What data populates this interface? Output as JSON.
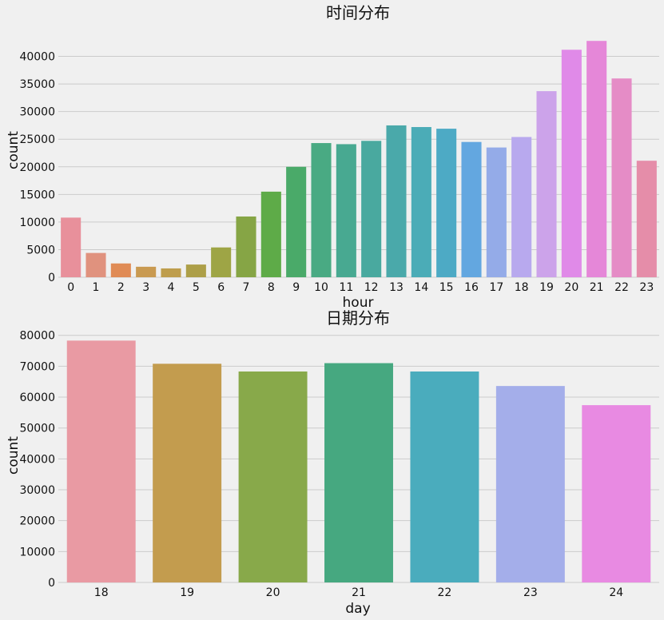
{
  "chart_data": [
    {
      "type": "bar",
      "title": "时间分布",
      "xlabel": "hour",
      "ylabel": "count",
      "categories": [
        "0",
        "1",
        "2",
        "3",
        "4",
        "5",
        "6",
        "7",
        "8",
        "9",
        "10",
        "11",
        "12",
        "13",
        "14",
        "15",
        "16",
        "17",
        "18",
        "19",
        "20",
        "21",
        "22",
        "23"
      ],
      "values": [
        10800,
        4400,
        2500,
        1900,
        1600,
        2300,
        5400,
        11000,
        15500,
        20000,
        24300,
        24100,
        24700,
        27500,
        27200,
        26900,
        24500,
        23500,
        25400,
        33700,
        41200,
        42800,
        36000,
        21100
      ],
      "colors": [
        "#e8909b",
        "#e0927e",
        "#e08b55",
        "#c99a51",
        "#be9d4c",
        "#ad9f48",
        "#9ea545",
        "#86a545",
        "#5eab48",
        "#4aaa69",
        "#49aa83",
        "#48a991",
        "#49a99f",
        "#4aa9aa",
        "#4bacb7",
        "#4daac5",
        "#63a7e0",
        "#94abe8",
        "#b8a9ee",
        "#cca3ea",
        "#e08ae8",
        "#e587d8",
        "#e58cc6",
        "#e58da9"
      ],
      "ylim": [
        0,
        45000
      ],
      "yticks": [
        0,
        5000,
        10000,
        15000,
        20000,
        25000,
        30000,
        35000,
        40000
      ],
      "grid": true
    },
    {
      "type": "bar",
      "title": "日期分布",
      "xlabel": "day",
      "ylabel": "count",
      "categories": [
        "18",
        "19",
        "20",
        "21",
        "22",
        "23",
        "24"
      ],
      "values": [
        78300,
        70800,
        68300,
        71000,
        68300,
        63600,
        57400
      ],
      "colors": [
        "#e99aa3",
        "#c39c4e",
        "#88a94a",
        "#46a880",
        "#4aacbd",
        "#a4aeea",
        "#e88ae2"
      ],
      "ylim": [
        0,
        82000
      ],
      "yticks": [
        0,
        10000,
        20000,
        30000,
        40000,
        50000,
        60000,
        70000,
        80000
      ],
      "grid": true
    }
  ]
}
